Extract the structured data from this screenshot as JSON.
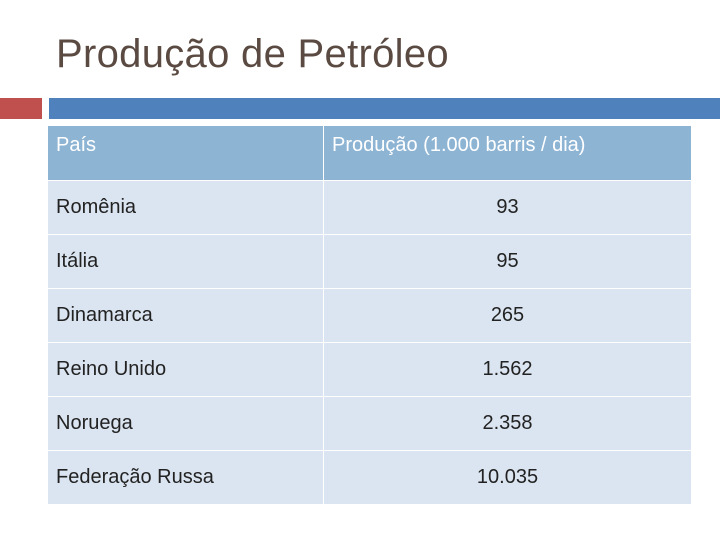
{
  "title": "Produção de Petróleo",
  "table": {
    "headers": {
      "country": "País",
      "production": "Produção (1.000 barris / dia)"
    },
    "rows": [
      {
        "country": "Romênia",
        "production": "93"
      },
      {
        "country": "Itália",
        "production": "95"
      },
      {
        "country": "Dinamarca",
        "production": "265"
      },
      {
        "country": "Reino Unido",
        "production": "1.562"
      },
      {
        "country": "Noruega",
        "production": "2.358"
      },
      {
        "country": "Federação Russa",
        "production": "10.035"
      }
    ]
  },
  "colors": {
    "title": "#5a4a42",
    "accent_red": "#c0504d",
    "accent_blue": "#4f81bd",
    "header_bg": "#8eb4d4",
    "row_bg": "#dbe5f1"
  }
}
